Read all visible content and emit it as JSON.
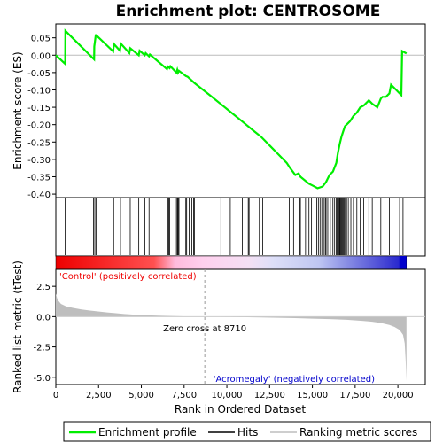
{
  "chart_data": [
    {
      "type": "line",
      "title": "Enrichment plot: CENTROSOME",
      "ylabel": "Enrichment score (ES)",
      "ylim": [
        -0.41,
        0.09
      ],
      "yticks": [
        "0.05",
        "0.00",
        "-0.05",
        "-0.10",
        "-0.15",
        "-0.20",
        "-0.25",
        "-0.30",
        "-0.35",
        "-0.40"
      ],
      "ytick_values": [
        0.05,
        0.0,
        -0.05,
        -0.1,
        -0.15,
        -0.2,
        -0.25,
        -0.3,
        -0.35,
        -0.4
      ],
      "grid": false,
      "series": [
        {
          "name": "Enrichment profile",
          "color": "#00ee00",
          "x": [
            0,
            550,
            560,
            2240,
            2250,
            2340,
            2350,
            3350,
            3400,
            3750,
            3800,
            4300,
            4350,
            4850,
            4900,
            5200,
            5250,
            5450,
            5500,
            6500,
            6550,
            6650,
            6700,
            7050,
            7100,
            7150,
            7200,
            7600,
            7700,
            8100,
            9000,
            10000,
            11000,
            11500,
            12000,
            12500,
            13000,
            13500,
            13700,
            14000,
            14200,
            14300,
            14800,
            15000,
            15300,
            15600,
            15800,
            16000,
            16200,
            16400,
            16500,
            16600,
            16700,
            16800,
            16900,
            17000,
            17200,
            17400,
            17600,
            17800,
            18000,
            18200,
            18300,
            18500,
            18800,
            19000,
            19100,
            19300,
            19500,
            19600,
            20200,
            20250,
            20500
          ],
          "y": [
            0.0,
            -0.025,
            0.07,
            -0.012,
            0.025,
            0.06,
            0.058,
            0.011,
            0.032,
            0.013,
            0.033,
            0.006,
            0.02,
            0.0,
            0.013,
            0.0,
            0.006,
            -0.003,
            0.002,
            -0.04,
            -0.033,
            -0.037,
            -0.032,
            -0.05,
            -0.042,
            -0.05,
            -0.045,
            -0.06,
            -0.062,
            -0.08,
            -0.115,
            -0.155,
            -0.195,
            -0.215,
            -0.235,
            -0.26,
            -0.285,
            -0.31,
            -0.325,
            -0.345,
            -0.34,
            -0.35,
            -0.37,
            -0.375,
            -0.383,
            -0.378,
            -0.365,
            -0.345,
            -0.335,
            -0.31,
            -0.28,
            -0.255,
            -0.235,
            -0.22,
            -0.205,
            -0.2,
            -0.19,
            -0.175,
            -0.165,
            -0.15,
            -0.145,
            -0.135,
            -0.13,
            -0.14,
            -0.15,
            -0.125,
            -0.12,
            -0.12,
            -0.11,
            -0.085,
            -0.115,
            0.012,
            0.005
          ]
        }
      ],
      "hits_x": [
        550,
        2200,
        2280,
        2350,
        3380,
        3780,
        4350,
        4850,
        5200,
        5450,
        6500,
        6560,
        6600,
        6660,
        7050,
        7110,
        7150,
        7200,
        7600,
        7650,
        7800,
        7950,
        8050,
        8100,
        9650,
        10200,
        10900,
        11250,
        11300,
        11900,
        12100,
        13650,
        13750,
        13900,
        14250,
        14300,
        14600,
        14800,
        14950,
        15250,
        15350,
        15450,
        15550,
        15650,
        15750,
        15800,
        15900,
        16050,
        16200,
        16300,
        16400,
        16450,
        16500,
        16550,
        16600,
        16620,
        16650,
        16700,
        16750,
        16800,
        16850,
        16900,
        17000,
        17100,
        17250,
        17400,
        17600,
        17800,
        18000,
        18300,
        18500,
        19000,
        19500,
        20100,
        20300
      ]
    },
    {
      "type": "area",
      "ylabel": "Ranked list metric (tTest)",
      "xlabel": "Rank in Ordered Dataset",
      "xlim": [
        0,
        21600
      ],
      "xticks": [
        "0",
        "2,500",
        "5,000",
        "7,500",
        "10,000",
        "12,500",
        "15,000",
        "17,500",
        "20,000"
      ],
      "xtick_values": [
        0,
        2500,
        5000,
        7500,
        10000,
        12500,
        15000,
        17500,
        20000
      ],
      "ylim": [
        -5.6,
        3.9
      ],
      "yticks": [
        "2.5",
        "0.0",
        "-2.5",
        "-5.0"
      ],
      "ytick_values": [
        2.5,
        0.0,
        -2.5,
        -5.0
      ],
      "zero_cross": 8710,
      "zero_cross_label": "Zero cross at 8710",
      "positive_label": "'Control' (positively correlated)",
      "negative_label": "'Acromegaly' (negatively correlated)",
      "series": [
        {
          "name": "Ranking metric scores",
          "color": "#bebebe",
          "x": [
            0,
            100,
            300,
            600,
            1000,
            1500,
            2000,
            3000,
            4000,
            5000,
            6000,
            7000,
            8000,
            8710,
            10000,
            12000,
            14000,
            15000,
            16000,
            17000,
            18000,
            18500,
            19000,
            19500,
            19800,
            20100,
            20300,
            20400,
            20450,
            20500
          ],
          "y": [
            1.9,
            1.4,
            1.05,
            0.85,
            0.72,
            0.6,
            0.5,
            0.35,
            0.22,
            0.13,
            0.08,
            0.04,
            0.01,
            0.0,
            -0.02,
            -0.07,
            -0.12,
            -0.16,
            -0.2,
            -0.26,
            -0.35,
            -0.42,
            -0.52,
            -0.68,
            -0.85,
            -1.1,
            -1.5,
            -2.2,
            -3.5,
            -5.3
          ]
        }
      ]
    }
  ],
  "legend": {
    "enrichment": "Enrichment profile",
    "hits": "Hits",
    "ranking": "Ranking metric scores"
  },
  "colors": {
    "profile": "#00ee00",
    "hits": "#000000",
    "metric": "#bebebe",
    "positive": "#ee0000",
    "negative": "#0000cc",
    "zero_line": "#999999"
  }
}
